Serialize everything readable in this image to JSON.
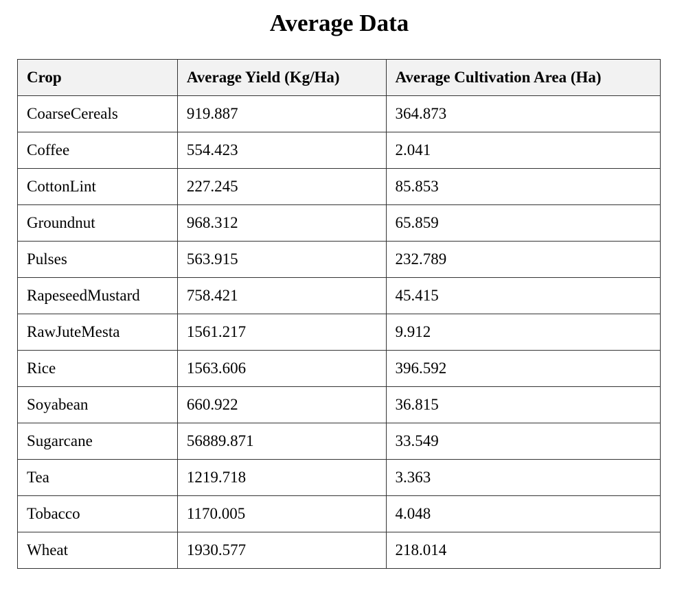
{
  "title": "Average Data",
  "table": {
    "headers": [
      "Crop",
      "Average Yield (Kg/Ha)",
      "Average Cultivation Area (Ha)"
    ],
    "rows": [
      [
        "CoarseCereals",
        "919.887",
        "364.873"
      ],
      [
        "Coffee",
        "554.423",
        "2.041"
      ],
      [
        "CottonLint",
        "227.245",
        "85.853"
      ],
      [
        "Groundnut",
        "968.312",
        "65.859"
      ],
      [
        "Pulses",
        "563.915",
        "232.789"
      ],
      [
        "RapeseedMustard",
        "758.421",
        "45.415"
      ],
      [
        "RawJuteMesta",
        "1561.217",
        "9.912"
      ],
      [
        "Rice",
        "1563.606",
        "396.592"
      ],
      [
        "Soyabean",
        "660.922",
        "36.815"
      ],
      [
        "Sugarcane",
        "56889.871",
        "33.549"
      ],
      [
        "Tea",
        "1219.718",
        "3.363"
      ],
      [
        "Tobacco",
        "1170.005",
        "4.048"
      ],
      [
        "Wheat",
        "1930.577",
        "218.014"
      ]
    ]
  }
}
